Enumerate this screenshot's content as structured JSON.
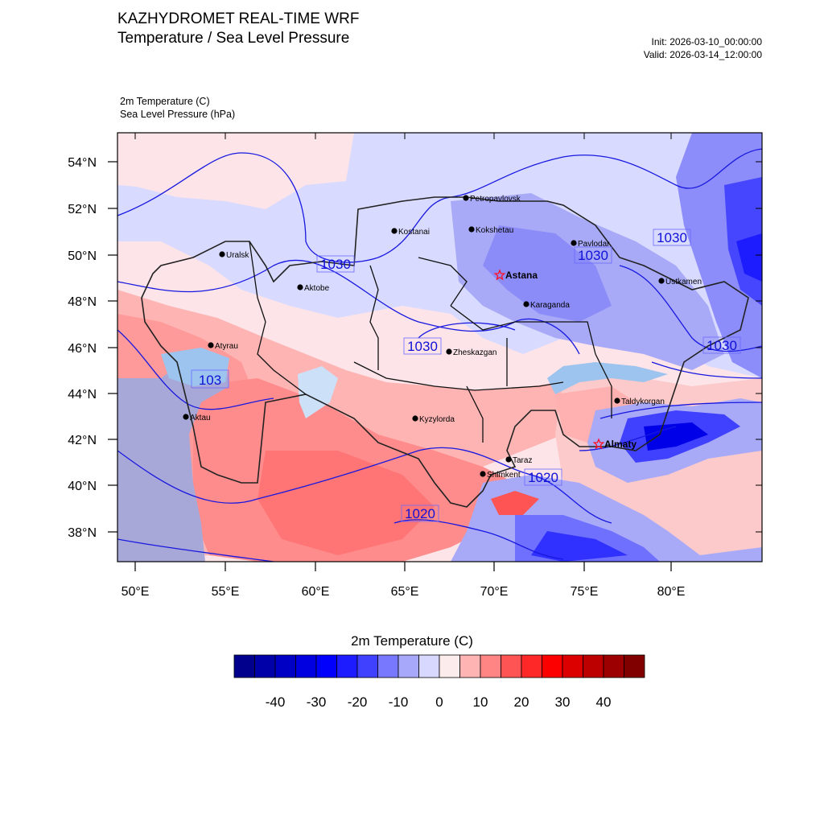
{
  "header": {
    "title": "KAZHYDROMET REAL-TIME WRF",
    "subtitle": "Temperature / Sea Level Pressure",
    "init": "Init: 2026-03-10_00:00:00",
    "valid": "Valid: 2026-03-14_12:00:00"
  },
  "variables": {
    "temperature": "2m Temperature   (C)",
    "pressure": "Sea Level Pressure   (hPa)"
  },
  "axes": {
    "lat_labels": [
      "54°N",
      "52°N",
      "50°N",
      "48°N",
      "46°N",
      "44°N",
      "42°N",
      "40°N",
      "38°N"
    ],
    "lon_labels": [
      "50°E",
      "55°E",
      "60°E",
      "65°E",
      "70°E",
      "75°E",
      "80°E"
    ]
  },
  "cities": [
    {
      "name": "Petropavlovsk",
      "capital": false
    },
    {
      "name": "Kostanai",
      "capital": false
    },
    {
      "name": "Kokshetau",
      "capital": false
    },
    {
      "name": "Pavlodar",
      "capital": false
    },
    {
      "name": "Uralsk",
      "capital": false
    },
    {
      "name": "Astana",
      "capital": true
    },
    {
      "name": "Aktobe",
      "capital": false
    },
    {
      "name": "Ustkamen",
      "capital": false
    },
    {
      "name": "Karaganda",
      "capital": false
    },
    {
      "name": "Atyrau",
      "capital": false
    },
    {
      "name": "Zheskazgan",
      "capital": false
    },
    {
      "name": "Taldykorgan",
      "capital": false
    },
    {
      "name": "Aktau",
      "capital": false
    },
    {
      "name": "Kyzylorda",
      "capital": false
    },
    {
      "name": "Almaty",
      "capital": true
    },
    {
      "name": "Taraz",
      "capital": false
    },
    {
      "name": "Shimkent",
      "capital": false
    }
  ],
  "isobar_labels": [
    "1030",
    "1030",
    "1030",
    "1030",
    "1030",
    "103",
    "1020",
    "1020"
  ],
  "colorbar": {
    "title": "2m Temperature  (C)",
    "tick_labels": [
      "-40",
      "-30",
      "-20",
      "-10",
      "0",
      "10",
      "20",
      "30",
      "40"
    ],
    "colors": [
      "#00008c",
      "#0000a8",
      "#0000c4",
      "#0000e0",
      "#0000fc",
      "#1c1cff",
      "#4040ff",
      "#7878ff",
      "#a8a8fa",
      "#d8d8ff",
      "#fcecec",
      "#ffb4b4",
      "#ff8484",
      "#ff5454",
      "#ff2828",
      "#fc0000",
      "#dc0000",
      "#bc0000",
      "#9c0000",
      "#800000"
    ]
  }
}
